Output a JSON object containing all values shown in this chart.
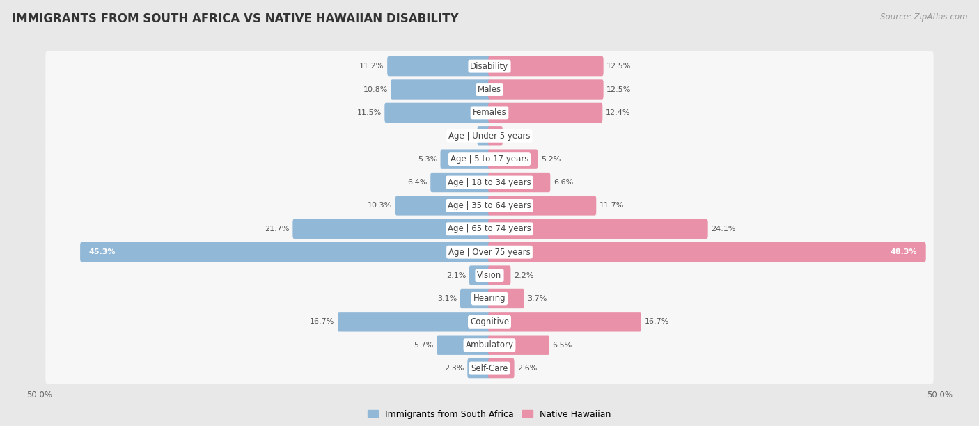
{
  "title": "IMMIGRANTS FROM SOUTH AFRICA VS NATIVE HAWAIIAN DISABILITY",
  "source": "Source: ZipAtlas.com",
  "categories": [
    "Disability",
    "Males",
    "Females",
    "Age | Under 5 years",
    "Age | 5 to 17 years",
    "Age | 18 to 34 years",
    "Age | 35 to 64 years",
    "Age | 65 to 74 years",
    "Age | Over 75 years",
    "Vision",
    "Hearing",
    "Cognitive",
    "Ambulatory",
    "Self-Care"
  ],
  "left_values": [
    11.2,
    10.8,
    11.5,
    1.2,
    5.3,
    6.4,
    10.3,
    21.7,
    45.3,
    2.1,
    3.1,
    16.7,
    5.7,
    2.3
  ],
  "right_values": [
    12.5,
    12.5,
    12.4,
    1.3,
    5.2,
    6.6,
    11.7,
    24.1,
    48.3,
    2.2,
    3.7,
    16.7,
    6.5,
    2.6
  ],
  "left_color": "#92b8d8",
  "right_color": "#e991a8",
  "left_label": "Immigrants from South Africa",
  "right_label": "Native Hawaiian",
  "axis_max": 50.0,
  "background_color": "#e8e8e8",
  "bar_background": "#f7f7f7",
  "title_fontsize": 12,
  "label_fontsize": 8.5,
  "source_fontsize": 8.5,
  "legend_fontsize": 9,
  "value_label_fontsize": 8
}
